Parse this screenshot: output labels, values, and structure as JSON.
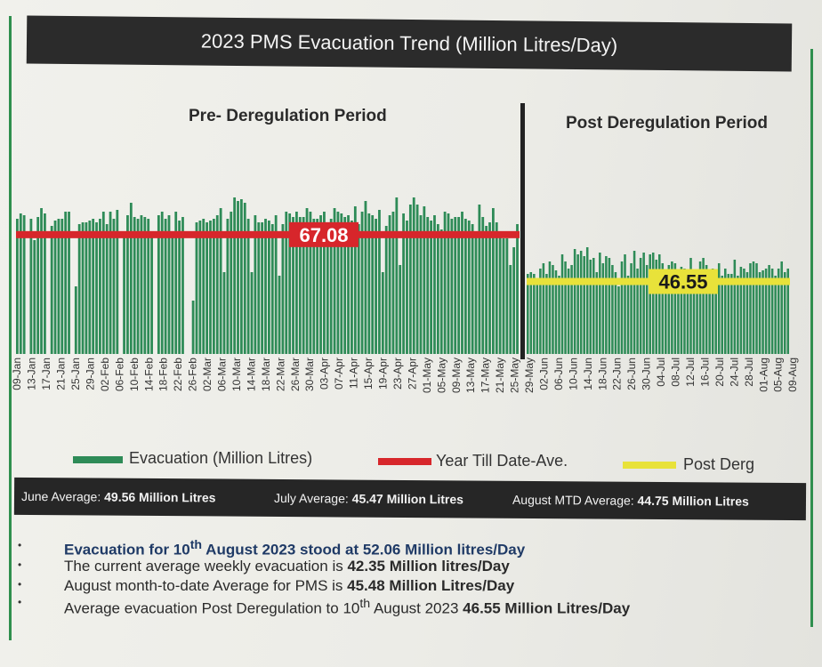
{
  "title": "2023 PMS Evacuation Trend  (Million Litres/Day)",
  "periods": {
    "pre": "Pre- Deregulation Period",
    "post": "Post Deregulation Period"
  },
  "legend": {
    "evacuation": "Evacuation (Million Litres)",
    "ytd": "Year Till Date-Ave.",
    "post": "Post Derg"
  },
  "averages": {
    "june_label": "June Average:",
    "june_value": "49.56 Million Litres",
    "july_label": "July Average:",
    "july_value": "45.47 Million Litres",
    "aug_label": "August MTD Average:",
    "aug_value": "44.75 Million Litres"
  },
  "notes": {
    "n1_pre": "Evacuation for 10",
    "n1_sup": "th",
    "n1_post": " August 2023 stood at 52.06 Million litres/Day",
    "n2_text": "The current average weekly evacuation is ",
    "n2_bold": "42.35 Million litres/Day",
    "n3_text": "August month-to-date Average for PMS is ",
    "n3_bold": "45.48 Million Litres/Day",
    "n4_pre": "Average evacuation Post Deregulation to 10",
    "n4_sup": "th",
    "n4_text": " August 2023 ",
    "n4_bold": "46.55 Million Litres/Day"
  },
  "colors": {
    "bar": "#2e8b57",
    "ytd_line": "#d7262b",
    "post_line": "#e8e23a",
    "deregulation_divider": "#222222"
  },
  "chart_data": {
    "type": "bar",
    "title": "2023 PMS Evacuation Trend  (Million Litres/Day)",
    "y_axis_shown": false,
    "x_tick_labels": [
      "09-Jan",
      "13-Jan",
      "17-Jan",
      "21-Jan",
      "25-Jan",
      "29-Jan",
      "02-Feb",
      "06-Feb",
      "10-Feb",
      "14-Feb",
      "18-Feb",
      "22-Feb",
      "26-Feb",
      "02-Mar",
      "06-Mar",
      "10-Mar",
      "14-Mar",
      "18-Mar",
      "22-Mar",
      "26-Mar",
      "30-Mar",
      "03-Apr",
      "07-Apr",
      "11-Apr",
      "15-Apr",
      "19-Apr",
      "23-Apr",
      "27-Apr",
      "01-May",
      "05-May",
      "09-May",
      "13-May",
      "17-May",
      "21-May",
      "25-May",
      "29-May",
      "02-Jun",
      "06-Jun",
      "10-Jun",
      "14-Jun",
      "18-Jun",
      "22-Jun",
      "26-Jun",
      "30-Jun",
      "04-Jul",
      "08-Jul",
      "12-Jul",
      "16-Jul",
      "20-Jul",
      "24-Jul",
      "28-Jul",
      "01-Aug",
      "05-Aug",
      "09-Aug"
    ],
    "series": [
      {
        "name": "Evacuation (Million Litres)",
        "type": "bar",
        "values": [
          76,
          79,
          78,
          0,
          76,
          64,
          77,
          82,
          79,
          0,
          72,
          75,
          76,
          76,
          80,
          80,
          0,
          38,
          73,
          74,
          74,
          75,
          76,
          74,
          76,
          80,
          73,
          80,
          76,
          81,
          0,
          68,
          78,
          85,
          77,
          76,
          78,
          77,
          76,
          67,
          0,
          78,
          80,
          76,
          78,
          68,
          80,
          75,
          77,
          0,
          0,
          30,
          74,
          75,
          76,
          74,
          75,
          76,
          78,
          82,
          46,
          76,
          80,
          88,
          86,
          87,
          85,
          76,
          46,
          78,
          74,
          74,
          76,
          75,
          73,
          78,
          44,
          73,
          80,
          79,
          77,
          80,
          77,
          77,
          82,
          80,
          76,
          76,
          78,
          80,
          70,
          76,
          82,
          80,
          79,
          77,
          78,
          75,
          83,
          73,
          80,
          86,
          79,
          78,
          76,
          81,
          46,
          72,
          78,
          80,
          88,
          50,
          79,
          75,
          84,
          88,
          84,
          78,
          83,
          77,
          75,
          78,
          73,
          70,
          80,
          79,
          76,
          77,
          77,
          80,
          76,
          75,
          73,
          69,
          84,
          77,
          72,
          74,
          82,
          74,
          66,
          65,
          65,
          50,
          60,
          73
        ]
      },
      {
        "name": "Evacuation (Million Litres)",
        "type": "bar",
        "values": [
          45,
          46,
          45,
          40,
          48,
          51,
          45,
          52,
          50,
          47,
          44,
          56,
          52,
          48,
          50,
          59,
          56,
          58,
          55,
          60,
          53,
          54,
          46,
          57,
          51,
          55,
          54,
          50,
          46,
          38,
          52,
          56,
          44,
          51,
          58,
          48,
          54,
          57,
          50,
          56,
          57,
          53,
          56,
          51,
          43,
          50,
          52,
          51,
          46,
          49,
          48,
          40,
          54,
          44,
          46,
          52,
          54,
          50,
          45,
          48,
          42,
          51,
          44,
          48,
          45,
          45,
          53,
          44,
          49,
          48,
          46,
          51,
          52,
          51,
          46,
          47,
          48,
          50,
          48,
          44,
          48,
          52,
          46,
          48
        ]
      }
    ],
    "lines": [
      {
        "name": "Year Till Date-Ave.",
        "value": 67.08,
        "label": "67.08",
        "period": "pre"
      },
      {
        "name": "Post Derg",
        "value": 46.55,
        "label": "46.55",
        "period": "post"
      }
    ]
  }
}
